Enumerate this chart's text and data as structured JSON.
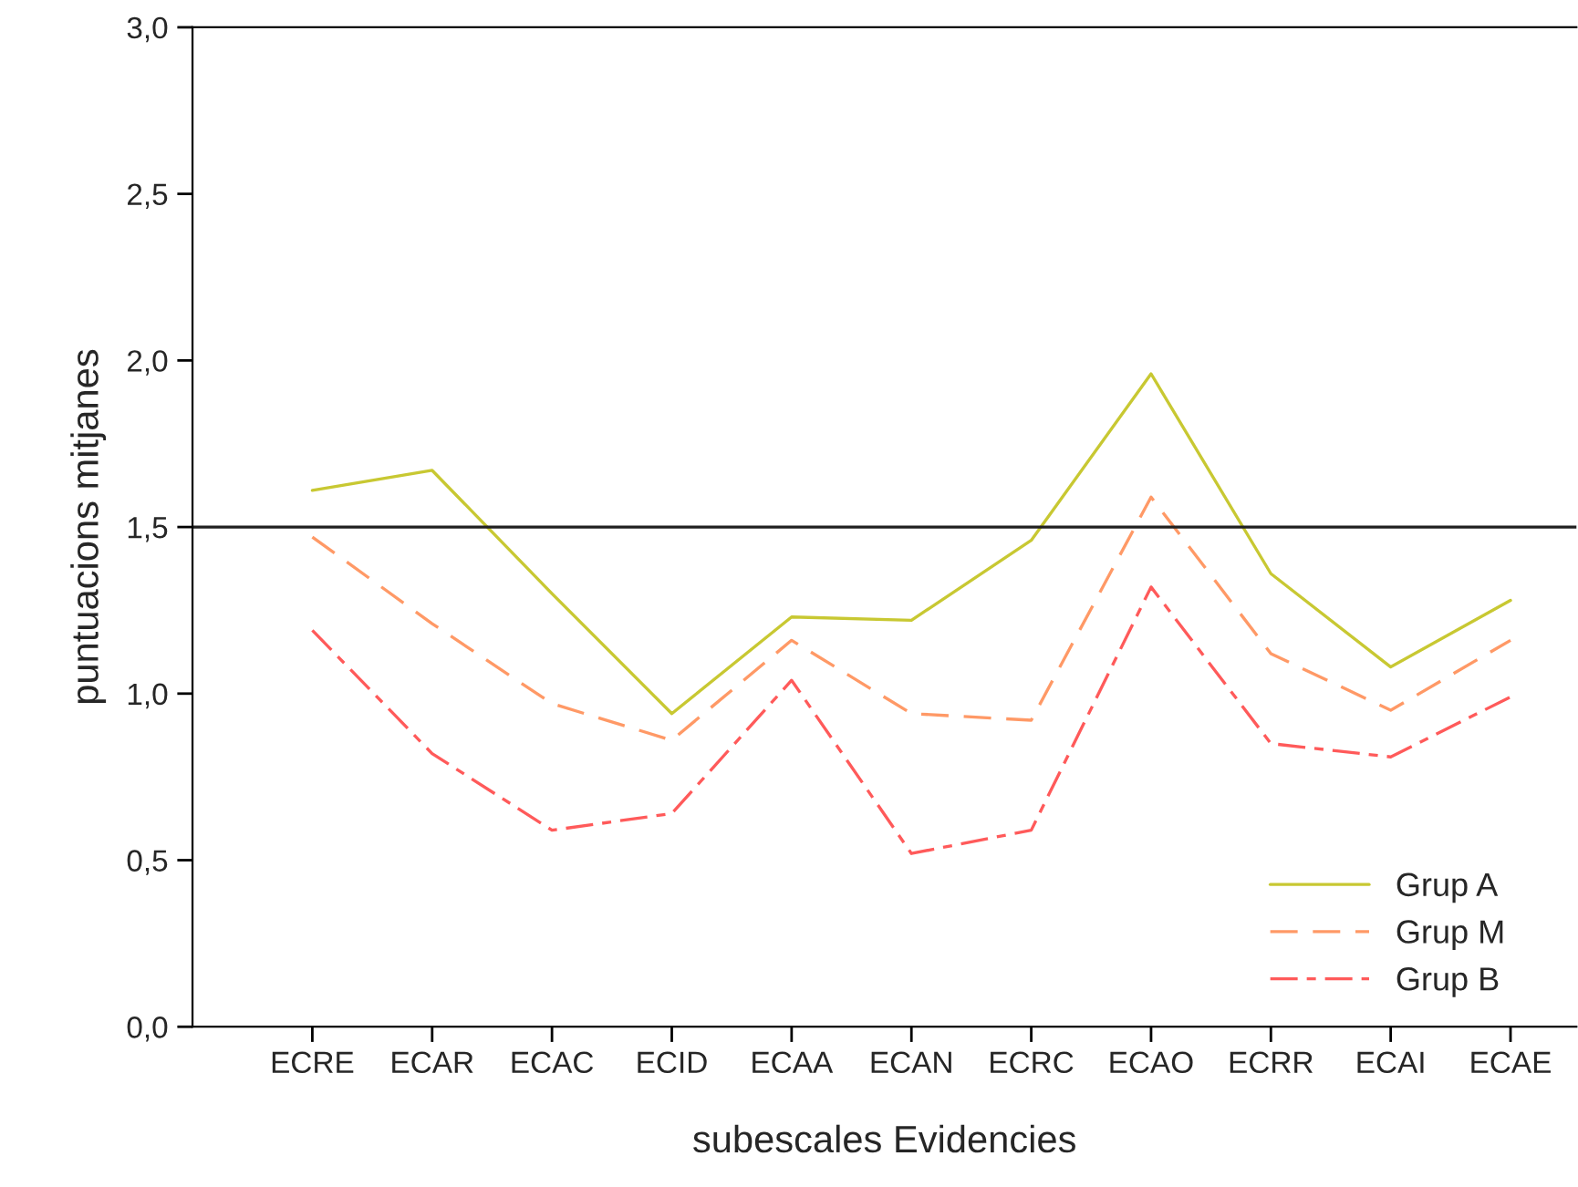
{
  "chart_data": {
    "type": "line",
    "xlabel": "subescales Evidencies",
    "ylabel": "puntuacions mitjanes",
    "categories": [
      "ECRE",
      "ECAR",
      "ECAC",
      "ECID",
      "ECAA",
      "ECAN",
      "ECRC",
      "ECAO",
      "ECRR",
      "ECAI",
      "ECAE"
    ],
    "series": [
      {
        "name": "Grup A",
        "color": "#c8c832",
        "line_style": "solid",
        "values": [
          1.61,
          1.67,
          1.3,
          0.94,
          1.23,
          1.22,
          1.46,
          1.96,
          1.36,
          1.08,
          1.28
        ]
      },
      {
        "name": "Grup M",
        "color": "#ff9966",
        "line_style": "dashed",
        "values": [
          1.47,
          1.21,
          0.97,
          0.86,
          1.16,
          0.94,
          0.92,
          1.59,
          1.12,
          0.95,
          1.16
        ]
      },
      {
        "name": "Grup B",
        "color": "#ff5a5a",
        "line_style": "dashed",
        "values": [
          1.19,
          0.82,
          0.59,
          0.64,
          1.04,
          0.52,
          0.59,
          1.32,
          0.85,
          0.81,
          0.99
        ]
      }
    ],
    "ylim": [
      0,
      3
    ],
    "yticks": [
      {
        "value": 0,
        "label": "0,0"
      },
      {
        "value": 0.5,
        "label": "0,5"
      },
      {
        "value": 1,
        "label": "1,0"
      },
      {
        "value": 1.5,
        "label": "1,5"
      },
      {
        "value": 2,
        "label": "2,0"
      },
      {
        "value": 2.5,
        "label": "2,5"
      },
      {
        "value": 3,
        "label": "3,0"
      }
    ],
    "ref_lines": [
      {
        "axis": "y",
        "value": 1.5,
        "color": "#202020"
      }
    ],
    "grid": false,
    "legend": "bottom right",
    "marker": "none"
  }
}
